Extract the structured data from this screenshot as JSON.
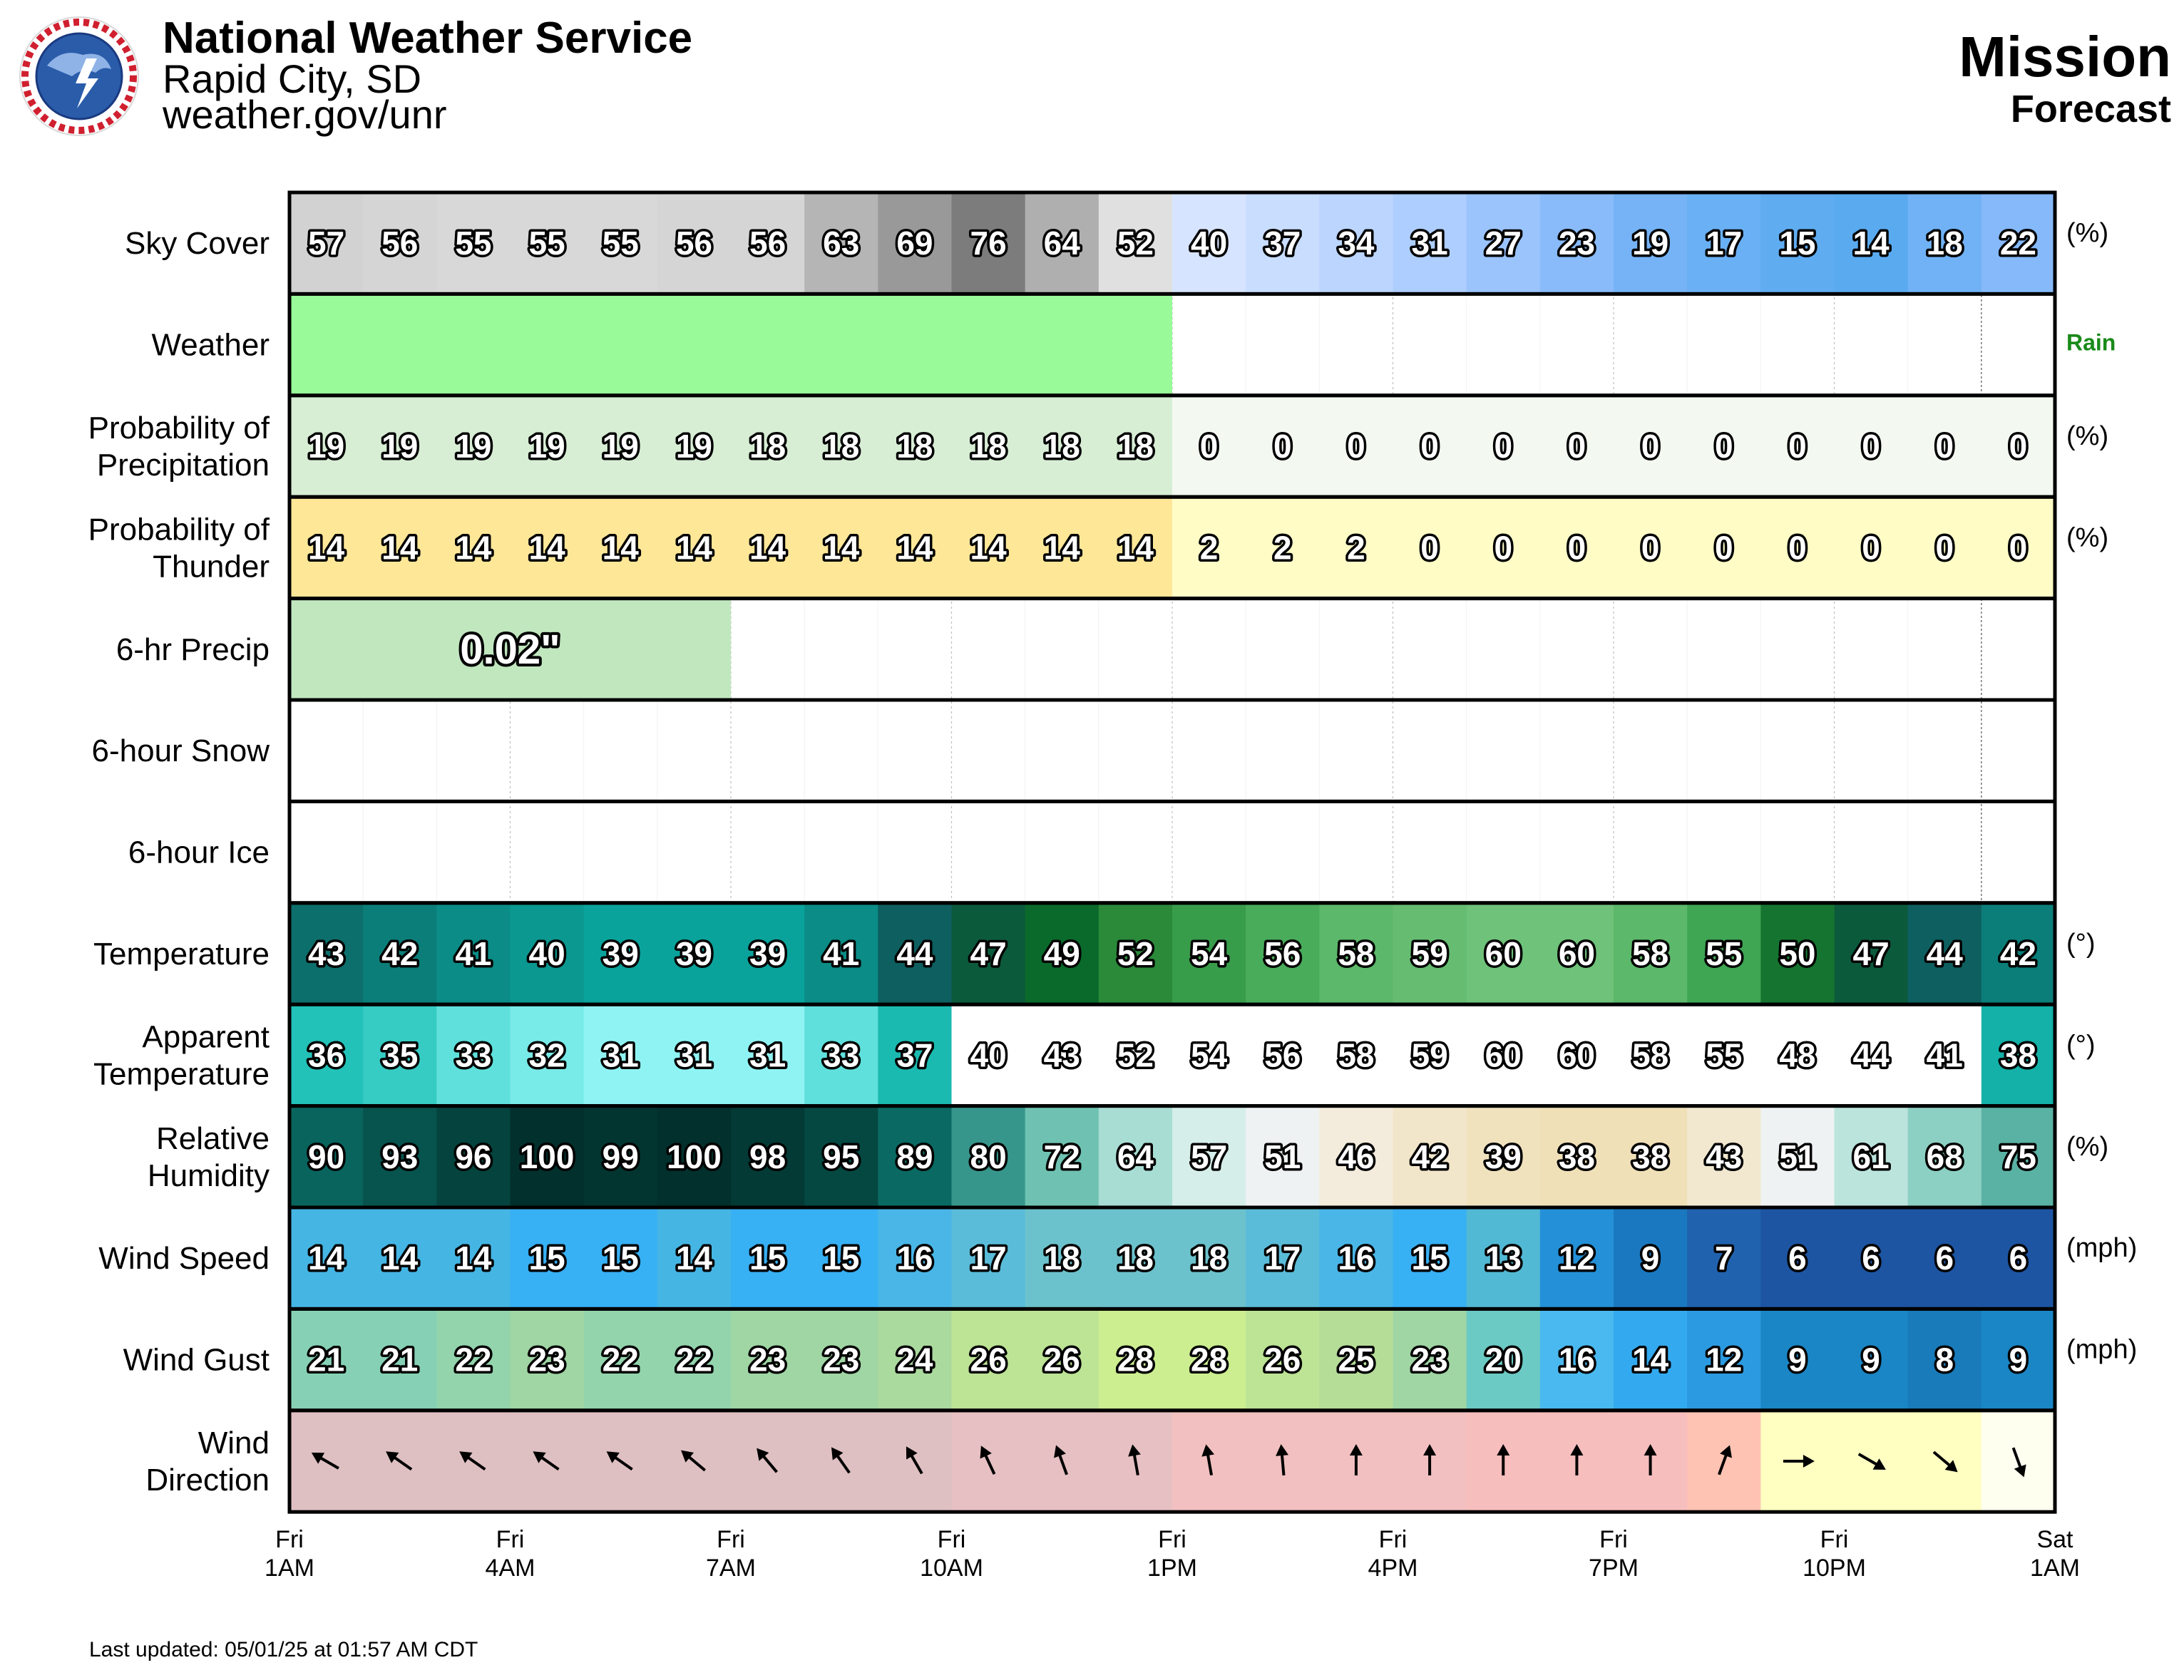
{
  "header": {
    "org": "National Weather Service",
    "office": "Rapid City, SD",
    "site": "weather.gov/unr",
    "location": "Mission",
    "product": "Forecast"
  },
  "footer": {
    "updated": "Last updated: 05/01/25 at 01:57 AM CDT"
  },
  "colors": {
    "rain_label": "#1a8a1a",
    "weather_rain_fill": "#98fa98",
    "precip_fill": "#c1e7bf",
    "grid_border": "#000000",
    "wind_dir_fills": [
      "#dfc0c2",
      "#e6c0c2",
      "#f2c0c0",
      "#f7bebe",
      "#fec3b3",
      "#ffffc2",
      "#fffff0"
    ]
  },
  "chart_data": {
    "type": "table",
    "x_axis_labels": [
      {
        "day": "Fri",
        "time": "1AM"
      },
      {
        "day": "Fri",
        "time": "4AM"
      },
      {
        "day": "Fri",
        "time": "7AM"
      },
      {
        "day": "Fri",
        "time": "10AM"
      },
      {
        "day": "Fri",
        "time": "1PM"
      },
      {
        "day": "Fri",
        "time": "4PM"
      },
      {
        "day": "Fri",
        "time": "7PM"
      },
      {
        "day": "Fri",
        "time": "10PM"
      },
      {
        "day": "Sat",
        "time": "1AM"
      }
    ],
    "rows": [
      {
        "key": "sky",
        "label": [
          "Sky Cover"
        ],
        "unit": "(%)",
        "values": [
          57,
          56,
          55,
          55,
          55,
          56,
          56,
          63,
          69,
          76,
          64,
          52,
          40,
          37,
          34,
          31,
          27,
          23,
          19,
          17,
          15,
          14,
          18,
          22
        ]
      },
      {
        "key": "weather",
        "label": [
          "Weather"
        ],
        "unit": "Rain",
        "rain_hours": 12
      },
      {
        "key": "pop",
        "label": [
          "Probability of",
          "Precipitation"
        ],
        "unit": "(%)",
        "values": [
          19,
          19,
          19,
          19,
          19,
          19,
          18,
          18,
          18,
          18,
          18,
          18,
          0,
          0,
          0,
          0,
          0,
          0,
          0,
          0,
          0,
          0,
          0,
          0
        ]
      },
      {
        "key": "thunder",
        "label": [
          "Probability of",
          "Thunder"
        ],
        "unit": "(%)",
        "values": [
          14,
          14,
          14,
          14,
          14,
          14,
          14,
          14,
          14,
          14,
          14,
          14,
          2,
          2,
          2,
          0,
          0,
          0,
          0,
          0,
          0,
          0,
          0,
          0
        ]
      },
      {
        "key": "qpf",
        "label": [
          "6-hr Precip"
        ],
        "unit": "",
        "blocks": [
          {
            "start": 0,
            "hours": 6,
            "text": "0.02\""
          }
        ]
      },
      {
        "key": "snow",
        "label": [
          "6-hour Snow"
        ],
        "unit": ""
      },
      {
        "key": "ice",
        "label": [
          "6-hour Ice"
        ],
        "unit": ""
      },
      {
        "key": "temp",
        "label": [
          "Temperature"
        ],
        "unit": "(°)",
        "values": [
          43,
          42,
          41,
          40,
          39,
          39,
          39,
          41,
          44,
          47,
          49,
          52,
          54,
          56,
          58,
          59,
          60,
          60,
          58,
          55,
          50,
          47,
          44,
          42
        ]
      },
      {
        "key": "apparent",
        "label": [
          "Apparent",
          "Temperature"
        ],
        "unit": "(°)",
        "values": [
          36,
          35,
          33,
          32,
          31,
          31,
          31,
          33,
          37,
          40,
          43,
          52,
          54,
          56,
          58,
          59,
          60,
          60,
          58,
          55,
          48,
          44,
          41,
          38
        ]
      },
      {
        "key": "rh",
        "label": [
          "Relative",
          "Humidity"
        ],
        "unit": "(%)",
        "values": [
          90,
          93,
          96,
          100,
          99,
          100,
          98,
          95,
          89,
          80,
          72,
          64,
          57,
          51,
          46,
          42,
          39,
          38,
          38,
          43,
          51,
          61,
          68,
          75
        ]
      },
      {
        "key": "wind",
        "label": [
          "Wind Speed"
        ],
        "unit": "(mph)",
        "values": [
          14,
          14,
          14,
          15,
          15,
          14,
          15,
          15,
          16,
          17,
          18,
          18,
          18,
          17,
          16,
          15,
          13,
          12,
          9,
          7,
          6,
          6,
          6,
          6
        ]
      },
      {
        "key": "gust",
        "label": [
          "Wind Gust"
        ],
        "unit": "(mph)",
        "values": [
          21,
          21,
          22,
          23,
          22,
          22,
          23,
          23,
          24,
          26,
          26,
          28,
          28,
          26,
          25,
          23,
          20,
          16,
          14,
          12,
          9,
          9,
          8,
          9
        ]
      },
      {
        "key": "wdir",
        "label": [
          "Wind",
          "Direction"
        ],
        "unit": "",
        "values": [
          300,
          305,
          305,
          305,
          305,
          310,
          320,
          325,
          330,
          335,
          340,
          350,
          350,
          355,
          0,
          0,
          0,
          0,
          0,
          20,
          90,
          120,
          130,
          160
        ]
      }
    ]
  }
}
